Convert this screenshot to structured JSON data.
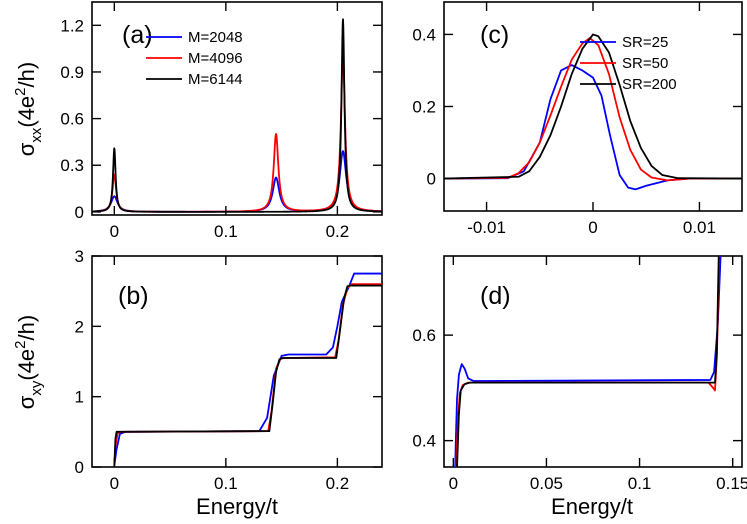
{
  "chart_data": [
    {
      "id": "a",
      "type": "line",
      "panel_label": "(a)",
      "ylabel": "σxx(4e²/h)",
      "ylabel_parts": {
        "sym": "σ",
        "sub": "xx",
        "pre": "(4e",
        "sup": "2",
        "post": "/h)"
      },
      "xlim": [
        -0.02,
        0.24
      ],
      "ylim": [
        -0.02,
        1.35
      ],
      "xticks": [
        0,
        0.1,
        0.2
      ],
      "xtick_labels": [
        "0",
        "0.1",
        "0.2"
      ],
      "yticks": [
        0,
        0.3,
        0.6,
        0.9,
        1.2
      ],
      "ytick_labels": [
        "0",
        "0.3",
        "0.6",
        "0.9",
        "1.2"
      ],
      "legend_position": "top-right",
      "series": [
        {
          "name": "M=2048",
          "color": "#0000ff",
          "baseline": 0.0,
          "peaks": [
            [
              0.0,
              0.1,
              0.0035
            ],
            [
              0.145,
              0.22,
              0.0035
            ],
            [
              0.205,
              0.39,
              0.0035
            ]
          ]
        },
        {
          "name": "M=4096",
          "color": "#ff0000",
          "baseline": 0.0,
          "peaks": [
            [
              0.0,
              0.24,
              0.002
            ],
            [
              0.145,
              0.5,
              0.0025
            ],
            [
              0.205,
              1.01,
              0.0022
            ]
          ]
        },
        {
          "name": "M=6144",
          "color": "#000000",
          "baseline": 0.0,
          "peaks": [
            [
              0.0,
              0.41,
              0.0014
            ],
            [
              0.145,
              0.0,
              0.002
            ],
            [
              0.205,
              1.24,
              0.0016
            ]
          ]
        }
      ]
    },
    {
      "id": "b",
      "type": "line",
      "panel_label": "(b)",
      "ylabel": "σxy(4e²/h)",
      "ylabel_parts": {
        "sym": "σ",
        "sub": "xy",
        "pre": "(4e",
        "sup": "2",
        "post": "/h)"
      },
      "xlabel": "Energy/t",
      "xlim": [
        -0.02,
        0.24
      ],
      "ylim": [
        0,
        3
      ],
      "xticks": [
        0,
        0.1,
        0.2
      ],
      "xtick_labels": [
        "0",
        "0.1",
        "0.2"
      ],
      "yticks": [
        0,
        1,
        2,
        3
      ],
      "ytick_labels": [
        "0",
        "1",
        "2",
        "3"
      ],
      "series": [
        {
          "name": "M=2048",
          "color": "#0000ff",
          "points": [
            [
              0,
              0.02
            ],
            [
              0.002,
              0.25
            ],
            [
              0.005,
              0.47
            ],
            [
              0.01,
              0.5
            ],
            [
              0.13,
              0.51
            ],
            [
              0.137,
              0.7
            ],
            [
              0.143,
              1.3
            ],
            [
              0.15,
              1.58
            ],
            [
              0.156,
              1.6
            ],
            [
              0.19,
              1.6
            ],
            [
              0.196,
              1.7
            ],
            [
              0.2,
              2.0
            ],
            [
              0.204,
              2.35
            ],
            [
              0.21,
              2.55
            ],
            [
              0.215,
              2.75
            ],
            [
              0.24,
              2.75
            ]
          ]
        },
        {
          "name": "M=4096",
          "color": "#ff0000",
          "points": [
            [
              0,
              0.02
            ],
            [
              0.001,
              0.3
            ],
            [
              0.003,
              0.48
            ],
            [
              0.006,
              0.5
            ],
            [
              0.138,
              0.51
            ],
            [
              0.141,
              0.8
            ],
            [
              0.145,
              1.4
            ],
            [
              0.149,
              1.54
            ],
            [
              0.153,
              1.55
            ],
            [
              0.198,
              1.56
            ],
            [
              0.201,
              1.8
            ],
            [
              0.205,
              2.3
            ],
            [
              0.209,
              2.55
            ],
            [
              0.213,
              2.6
            ],
            [
              0.24,
              2.6
            ]
          ]
        },
        {
          "name": "M=6144",
          "color": "#000000",
          "points": [
            [
              0,
              0.02
            ],
            [
              0.001,
              0.4
            ],
            [
              0.002,
              0.5
            ],
            [
              0.139,
              0.51
            ],
            [
              0.142,
              0.9
            ],
            [
              0.145,
              1.35
            ],
            [
              0.148,
              1.53
            ],
            [
              0.151,
              1.55
            ],
            [
              0.199,
              1.55
            ],
            [
              0.202,
              1.9
            ],
            [
              0.206,
              2.4
            ],
            [
              0.209,
              2.57
            ],
            [
              0.212,
              2.58
            ],
            [
              0.24,
              2.58
            ]
          ]
        }
      ]
    },
    {
      "id": "c",
      "type": "line",
      "panel_label": "(c)",
      "xlim": [
        -0.014,
        0.014
      ],
      "ylim": [
        -0.09,
        0.49
      ],
      "xticks": [
        -0.01,
        0,
        0.01
      ],
      "xtick_labels": [
        "-0.01",
        "0",
        "0.01"
      ],
      "yticks": [
        0,
        0.2,
        0.4
      ],
      "ytick_labels": [
        "0",
        "0.2",
        "0.4"
      ],
      "legend_position": "top-right",
      "series": [
        {
          "name": "SR=25",
          "color": "#0000ff",
          "points": [
            [
              -0.014,
              0
            ],
            [
              -0.008,
              0.001
            ],
            [
              -0.0065,
              0.02
            ],
            [
              -0.005,
              0.1
            ],
            [
              -0.004,
              0.22
            ],
            [
              -0.003,
              0.3
            ],
            [
              -0.002,
              0.315
            ],
            [
              -0.001,
              0.3
            ],
            [
              0,
              0.28
            ],
            [
              0.0008,
              0.23
            ],
            [
              0.0016,
              0.12
            ],
            [
              0.0025,
              0.01
            ],
            [
              0.0033,
              -0.025
            ],
            [
              0.004,
              -0.03
            ],
            [
              0.005,
              -0.02
            ],
            [
              0.007,
              -0.005
            ],
            [
              0.009,
              0
            ],
            [
              0.014,
              0
            ]
          ]
        },
        {
          "name": "SR=50",
          "color": "#ff0000",
          "points": [
            [
              -0.014,
              0
            ],
            [
              -0.008,
              0.002
            ],
            [
              -0.007,
              0.015
            ],
            [
              -0.006,
              0.045
            ],
            [
              -0.005,
              0.1
            ],
            [
              -0.004,
              0.175
            ],
            [
              -0.003,
              0.255
            ],
            [
              -0.002,
              0.33
            ],
            [
              -0.001,
              0.375
            ],
            [
              -0.0003,
              0.39
            ],
            [
              0.0005,
              0.37
            ],
            [
              0.0015,
              0.29
            ],
            [
              0.0025,
              0.17
            ],
            [
              0.0035,
              0.08
            ],
            [
              0.0045,
              0.025
            ],
            [
              0.0055,
              0.003
            ],
            [
              0.007,
              -0.005
            ],
            [
              0.009,
              0
            ],
            [
              0.014,
              0
            ]
          ]
        },
        {
          "name": "SR=200",
          "color": "#000000",
          "points": [
            [
              -0.014,
              0
            ],
            [
              -0.007,
              0.005
            ],
            [
              -0.006,
              0.02
            ],
            [
              -0.005,
              0.06
            ],
            [
              -0.004,
              0.12
            ],
            [
              -0.003,
              0.2
            ],
            [
              -0.002,
              0.29
            ],
            [
              -0.001,
              0.36
            ],
            [
              0,
              0.4
            ],
            [
              0.0005,
              0.395
            ],
            [
              0.0015,
              0.35
            ],
            [
              0.0025,
              0.26
            ],
            [
              0.0035,
              0.16
            ],
            [
              0.0045,
              0.085
            ],
            [
              0.0055,
              0.035
            ],
            [
              0.0065,
              0.01
            ],
            [
              0.008,
              0.001
            ],
            [
              0.014,
              0
            ]
          ]
        }
      ]
    },
    {
      "id": "d",
      "type": "line",
      "panel_label": "(d)",
      "xlabel": "Energy/t",
      "xlim": [
        -0.005,
        0.155
      ],
      "ylim": [
        0.35,
        0.75
      ],
      "xticks": [
        0,
        0.05,
        0.1,
        0.15
      ],
      "xtick_labels": [
        "0",
        "0.05",
        "0.1",
        "0.15"
      ],
      "yticks": [
        0.4,
        0.6
      ],
      "ytick_labels": [
        "0.4",
        "0.6"
      ],
      "series": [
        {
          "name": "SR=25",
          "color": "#0000ff",
          "points": [
            [
              0.001,
              0.35
            ],
            [
              0.0015,
              0.42
            ],
            [
              0.002,
              0.48
            ],
            [
              0.003,
              0.525
            ],
            [
              0.0045,
              0.545
            ],
            [
              0.006,
              0.537
            ],
            [
              0.008,
              0.518
            ],
            [
              0.011,
              0.513
            ],
            [
              0.138,
              0.515
            ],
            [
              0.14,
              0.53
            ],
            [
              0.142,
              0.62
            ],
            [
              0.1435,
              0.75
            ]
          ]
        },
        {
          "name": "SR=50",
          "color": "#ff0000",
          "points": [
            [
              0.0015,
              0.35
            ],
            [
              0.0025,
              0.44
            ],
            [
              0.0035,
              0.49
            ],
            [
              0.005,
              0.505
            ],
            [
              0.008,
              0.51
            ],
            [
              0.137,
              0.51
            ],
            [
              0.1395,
              0.5
            ],
            [
              0.1405,
              0.495
            ],
            [
              0.1415,
              0.56
            ],
            [
              0.1428,
              0.75
            ]
          ]
        },
        {
          "name": "SR=200",
          "color": "#000000",
          "points": [
            [
              0.002,
              0.35
            ],
            [
              0.003,
              0.45
            ],
            [
              0.004,
              0.495
            ],
            [
              0.006,
              0.507
            ],
            [
              0.009,
              0.51
            ],
            [
              0.138,
              0.51
            ],
            [
              0.1405,
              0.51
            ],
            [
              0.1415,
              0.57
            ],
            [
              0.1425,
              0.75
            ]
          ]
        }
      ]
    }
  ]
}
